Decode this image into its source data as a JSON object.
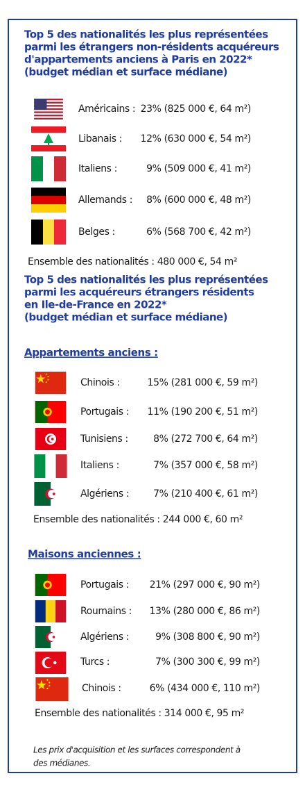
{
  "sections": [
    {
      "title_lines": [
        "Top 5 des nationalités les plus représentées",
        "parmi les étrangers non-résidents acquéreurs",
        "d'appartements anciens à Paris en 2022*",
        "(budget médian et surface médiane)"
      ],
      "groups": [
        {
          "rows": [
            {
              "name": "Américains :",
              "stat": "23% (825 000 €, 64 m²)"
            },
            {
              "name": "Libanais :",
              "stat": "12% (630 000 €, 54 m²)"
            },
            {
              "name": "Italiens :",
              "stat": "9% (509 000 €, 41 m²)"
            },
            {
              "name": "Allemands :",
              "stat": "8% (600 000 €, 48 m²)"
            },
            {
              "name": "Belges :",
              "stat": "6% (568 700 €, 42 m²)"
            }
          ],
          "total": "Ensemble des nationalités : 480 000 €, 54 m²"
        }
      ]
    },
    {
      "title_lines": [
        "Top 5 des nationalités les plus représentées",
        "parmi les acquéreurs étrangers résidents",
        "en Ile-de-France en 2022*",
        "(budget médian et surface médiane)"
      ],
      "groups": [
        {
          "subtitle": "Appartements anciens :",
          "rows": [
            {
              "name": "Chinois :",
              "stat": "15% (281 000 €, 59 m²)"
            },
            {
              "name": "Portugais :",
              "stat": "11% (190 200 €, 51 m²)"
            },
            {
              "name": "Tunisiens :",
              "stat": "8% (272 700 €, 64 m²)"
            },
            {
              "name": "Italiens :",
              "stat": "7% (357 000 €, 58 m²)"
            },
            {
              "name": "Algériens :",
              "stat": "7% (210 400 €, 61 m²)"
            }
          ],
          "total": "Ensemble des nationalités : 244 000 €, 60 m²"
        },
        {
          "subtitle": "Maisons anciennes :",
          "rows": [
            {
              "name": "Portugais :",
              "stat": "21% (297 000 €, 90 m²)"
            },
            {
              "name": "Roumains :",
              "stat": "13% (280 000 €, 86 m²)"
            },
            {
              "name": "Algériens :",
              "stat": "9% (308 800 €, 90 m²)"
            },
            {
              "name": "Turcs :",
              "stat": "7% (300 300 €, 99 m²)"
            },
            {
              "name": "Chinois :",
              "stat": "6% (434 000 €, 110 m²)"
            }
          ],
          "total": "Ensemble des nationalités : 314 000 €, 95 m²"
        }
      ]
    }
  ],
  "footnote_lines": [
    "Les prix d'acquisition et les surfaces correspondent à",
    "des médianes."
  ]
}
